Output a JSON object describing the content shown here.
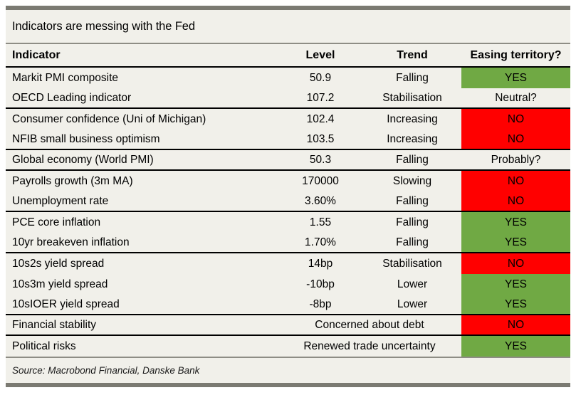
{
  "chart_data": {
    "type": "table",
    "title": "Indicators are messing with the Fed",
    "columns": [
      "Indicator",
      "Level",
      "Trend",
      "Easing territory?"
    ],
    "rows": [
      {
        "indicator": "Markit PMI composite",
        "level": "50.9",
        "trend": "Falling",
        "easing": "YES",
        "fill": "green",
        "group_end": false
      },
      {
        "indicator": "OECD Leading indicator",
        "level": "107.2",
        "trend": "Stabilisation",
        "easing": "Neutral?",
        "fill": "none",
        "group_end": true
      },
      {
        "indicator": "Consumer confidence (Uni of Michigan)",
        "level": "102.4",
        "trend": "Increasing",
        "easing": "NO",
        "fill": "red",
        "group_end": false
      },
      {
        "indicator": "NFIB small business optimism",
        "level": "103.5",
        "trend": "Increasing",
        "easing": "NO",
        "fill": "red",
        "group_end": true
      },
      {
        "indicator": "Global economy (World PMI)",
        "level": "50.3",
        "trend": "Falling",
        "easing": "Probably?",
        "fill": "none",
        "group_end": true
      },
      {
        "indicator": "Payrolls growth (3m MA)",
        "level": "170000",
        "trend": "Slowing",
        "easing": "NO",
        "fill": "red",
        "group_end": false
      },
      {
        "indicator": "Unemployment rate",
        "level": "3.60%",
        "trend": "Falling",
        "easing": "NO",
        "fill": "red",
        "group_end": true
      },
      {
        "indicator": "PCE core inflation",
        "level": "1.55",
        "trend": "Falling",
        "easing": "YES",
        "fill": "green",
        "group_end": false
      },
      {
        "indicator": "10yr breakeven inflation",
        "level": "1.70%",
        "trend": "Falling",
        "easing": "YES",
        "fill": "green",
        "group_end": true
      },
      {
        "indicator": "10s2s yield spread",
        "level": "14bp",
        "trend": "Stabilisation",
        "easing": "NO",
        "fill": "red",
        "group_end": false
      },
      {
        "indicator": "10s3m yield spread",
        "level": "-10bp",
        "trend": "Lower",
        "easing": "YES",
        "fill": "green",
        "group_end": false
      },
      {
        "indicator": "10sIOER yield spread",
        "level": "-8bp",
        "trend": "Lower",
        "easing": "YES",
        "fill": "green",
        "group_end": true
      },
      {
        "indicator": "Financial stability",
        "statement": "Concerned about debt",
        "easing": "NO",
        "fill": "red",
        "group_end": true
      },
      {
        "indicator": "Political risks",
        "statement": "Renewed trade uncertainty",
        "easing": "YES",
        "fill": "green",
        "group_end": false
      }
    ],
    "source": "Source: Macrobond Financial, Danske Bank"
  },
  "colors": {
    "green": "#70A944",
    "red": "#FF0000",
    "background": "#F1F0EA",
    "rule_gray": "#7B7A72",
    "divider_gray": "#8E8D85",
    "line_black": "#000000"
  }
}
